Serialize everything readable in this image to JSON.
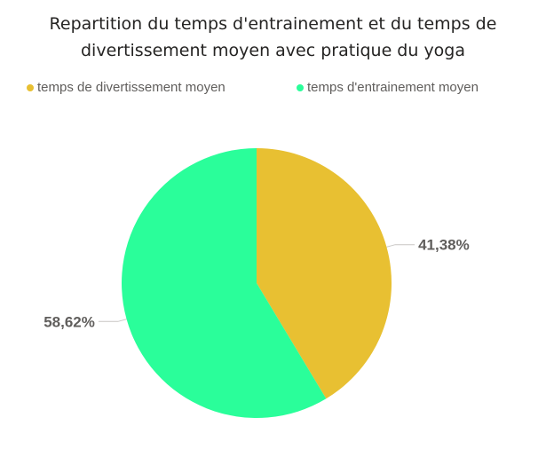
{
  "title_line1": "Repartition du temps d'entrainement et du temps de",
  "title_line2": "divertissement moyen avec pratique du yoga",
  "colors": {
    "divertissement": "#e8c032",
    "entrainement": "#2afe9a"
  },
  "chart_data": {
    "type": "pie",
    "title": "Repartition du temps d'entrainement et du temps de divertissement moyen avec pratique du yoga",
    "legend_position": "top",
    "slices": [
      {
        "name": "temps de divertissement moyen",
        "value": 41.38,
        "label": "41,38%",
        "color": "#e8c032"
      },
      {
        "name": "temps d'entrainement moyen",
        "value": 58.62,
        "label": "58,62%",
        "color": "#2afe9a"
      }
    ]
  }
}
